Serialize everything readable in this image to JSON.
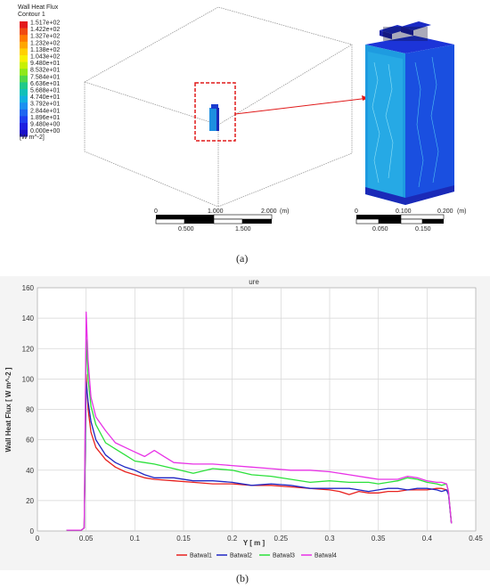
{
  "panel_a": {
    "legend_title_1": "Wall Heat Flux",
    "legend_title_2": "Contour 1",
    "legend_values": [
      "1.517e+02",
      "1.422e+02",
      "1.327e+02",
      "1.232e+02",
      "1.138e+02",
      "1.043e+02",
      "9.480e+01",
      "8.532e+01",
      "7.584e+01",
      "6.636e+01",
      "5.688e+01",
      "4.740e+01",
      "3.792e+01",
      "2.844e+01",
      "1.896e+01",
      "9.480e+00",
      "0.000e+00"
    ],
    "legend_colors": [
      "#e31a1c",
      "#f04a12",
      "#ff7a00",
      "#ffa600",
      "#ffd000",
      "#f7f000",
      "#c8f000",
      "#8ee81a",
      "#50d84a",
      "#20c98a",
      "#10c0b8",
      "#10b0e0",
      "#1c8ff0",
      "#1f66f0",
      "#1f3ff0",
      "#1e20e0",
      "#1a10c8"
    ],
    "legend_unit": "[W m^-2]",
    "scale_left": {
      "labels_top": [
        "0",
        "1.000",
        "2.000",
        "(m)"
      ],
      "labels_bottom": [
        "0.500",
        "1.500"
      ]
    },
    "scale_right": {
      "labels_top": [
        "0",
        "0.100",
        "0.200",
        "(m)"
      ],
      "labels_bottom": [
        "0.050",
        "0.150"
      ]
    },
    "caption": "(a)"
  },
  "panel_b": {
    "caption": "(b)",
    "top_label": "ure",
    "colors": {
      "Batwal1": "#e8211e",
      "Batwal2": "#2027c4",
      "Batwal3": "#2be03a",
      "Batwal4": "#e832e6"
    }
  },
  "chart_data": {
    "type": "line",
    "title": "",
    "xlabel": "Y [ m ]",
    "ylabel": "Wall Heat Flux [ W m^-2 ]",
    "xlim": [
      0,
      0.45
    ],
    "ylim": [
      0,
      160
    ],
    "xticks": [
      "0",
      "0.05",
      "0.1",
      "0.15",
      "0.2",
      "0.25",
      "0.3",
      "0.35",
      "0.4",
      "0.45"
    ],
    "yticks": [
      "0",
      "20",
      "40",
      "60",
      "80",
      "100",
      "120",
      "140",
      "160"
    ],
    "grid": true,
    "legend_position": "bottom",
    "series": [
      {
        "name": "Batwal1",
        "points": [
          [
            0.03,
            0.5
          ],
          [
            0.045,
            0.5
          ],
          [
            0.048,
            2
          ],
          [
            0.05,
            103
          ],
          [
            0.052,
            80
          ],
          [
            0.055,
            65
          ],
          [
            0.06,
            55
          ],
          [
            0.07,
            47
          ],
          [
            0.08,
            42
          ],
          [
            0.09,
            39
          ],
          [
            0.1,
            37
          ],
          [
            0.11,
            35
          ],
          [
            0.12,
            34
          ],
          [
            0.14,
            33
          ],
          [
            0.16,
            32
          ],
          [
            0.18,
            31
          ],
          [
            0.2,
            31
          ],
          [
            0.22,
            30
          ],
          [
            0.24,
            30
          ],
          [
            0.26,
            29
          ],
          [
            0.28,
            28
          ],
          [
            0.3,
            27
          ],
          [
            0.31,
            26
          ],
          [
            0.32,
            24
          ],
          [
            0.33,
            26
          ],
          [
            0.34,
            25
          ],
          [
            0.35,
            25
          ],
          [
            0.36,
            26
          ],
          [
            0.37,
            26
          ],
          [
            0.38,
            27
          ],
          [
            0.39,
            27
          ],
          [
            0.4,
            27
          ],
          [
            0.41,
            28
          ],
          [
            0.415,
            28
          ],
          [
            0.42,
            27
          ],
          [
            0.422,
            25
          ],
          [
            0.425,
            5
          ]
        ]
      },
      {
        "name": "Batwal2",
        "points": [
          [
            0.03,
            0.5
          ],
          [
            0.045,
            0.5
          ],
          [
            0.048,
            2
          ],
          [
            0.05,
            98
          ],
          [
            0.052,
            85
          ],
          [
            0.055,
            72
          ],
          [
            0.06,
            60
          ],
          [
            0.07,
            50
          ],
          [
            0.08,
            45
          ],
          [
            0.09,
            42
          ],
          [
            0.1,
            40
          ],
          [
            0.11,
            37
          ],
          [
            0.12,
            35
          ],
          [
            0.14,
            35
          ],
          [
            0.16,
            33
          ],
          [
            0.18,
            33
          ],
          [
            0.2,
            32
          ],
          [
            0.22,
            30
          ],
          [
            0.24,
            31
          ],
          [
            0.26,
            30
          ],
          [
            0.28,
            28
          ],
          [
            0.3,
            28
          ],
          [
            0.32,
            28
          ],
          [
            0.33,
            27
          ],
          [
            0.34,
            26
          ],
          [
            0.35,
            27
          ],
          [
            0.36,
            28
          ],
          [
            0.37,
            28
          ],
          [
            0.38,
            27
          ],
          [
            0.39,
            28
          ],
          [
            0.4,
            28
          ],
          [
            0.41,
            27
          ],
          [
            0.415,
            26
          ],
          [
            0.42,
            27
          ],
          [
            0.422,
            24
          ],
          [
            0.425,
            5
          ]
        ]
      },
      {
        "name": "Batwal3",
        "points": [
          [
            0.03,
            0.5
          ],
          [
            0.045,
            0.5
          ],
          [
            0.048,
            2
          ],
          [
            0.05,
            126
          ],
          [
            0.052,
            100
          ],
          [
            0.055,
            82
          ],
          [
            0.06,
            70
          ],
          [
            0.07,
            58
          ],
          [
            0.08,
            54
          ],
          [
            0.09,
            50
          ],
          [
            0.1,
            46
          ],
          [
            0.11,
            45
          ],
          [
            0.12,
            44
          ],
          [
            0.14,
            41
          ],
          [
            0.16,
            38
          ],
          [
            0.18,
            41
          ],
          [
            0.2,
            40
          ],
          [
            0.22,
            37
          ],
          [
            0.24,
            36
          ],
          [
            0.26,
            34
          ],
          [
            0.28,
            32
          ],
          [
            0.3,
            33
          ],
          [
            0.32,
            32
          ],
          [
            0.34,
            32
          ],
          [
            0.35,
            31
          ],
          [
            0.36,
            32
          ],
          [
            0.37,
            33
          ],
          [
            0.38,
            35
          ],
          [
            0.39,
            34
          ],
          [
            0.4,
            32
          ],
          [
            0.41,
            31
          ],
          [
            0.415,
            30
          ],
          [
            0.42,
            31
          ],
          [
            0.422,
            26
          ],
          [
            0.425,
            5
          ]
        ]
      },
      {
        "name": "Batwal4",
        "points": [
          [
            0.03,
            0.5
          ],
          [
            0.045,
            0.5
          ],
          [
            0.048,
            2
          ],
          [
            0.05,
            144
          ],
          [
            0.052,
            112
          ],
          [
            0.055,
            88
          ],
          [
            0.06,
            75
          ],
          [
            0.07,
            66
          ],
          [
            0.08,
            58
          ],
          [
            0.09,
            55
          ],
          [
            0.1,
            52
          ],
          [
            0.11,
            49
          ],
          [
            0.12,
            53
          ],
          [
            0.13,
            49
          ],
          [
            0.14,
            45
          ],
          [
            0.16,
            44
          ],
          [
            0.18,
            44
          ],
          [
            0.2,
            43
          ],
          [
            0.22,
            42
          ],
          [
            0.24,
            41
          ],
          [
            0.26,
            40
          ],
          [
            0.28,
            40
          ],
          [
            0.3,
            39
          ],
          [
            0.32,
            37
          ],
          [
            0.34,
            35
          ],
          [
            0.35,
            34
          ],
          [
            0.36,
            34
          ],
          [
            0.37,
            34
          ],
          [
            0.38,
            36
          ],
          [
            0.39,
            35
          ],
          [
            0.4,
            33
          ],
          [
            0.41,
            32
          ],
          [
            0.415,
            32
          ],
          [
            0.42,
            31
          ],
          [
            0.422,
            26
          ],
          [
            0.425,
            5
          ]
        ]
      }
    ]
  }
}
